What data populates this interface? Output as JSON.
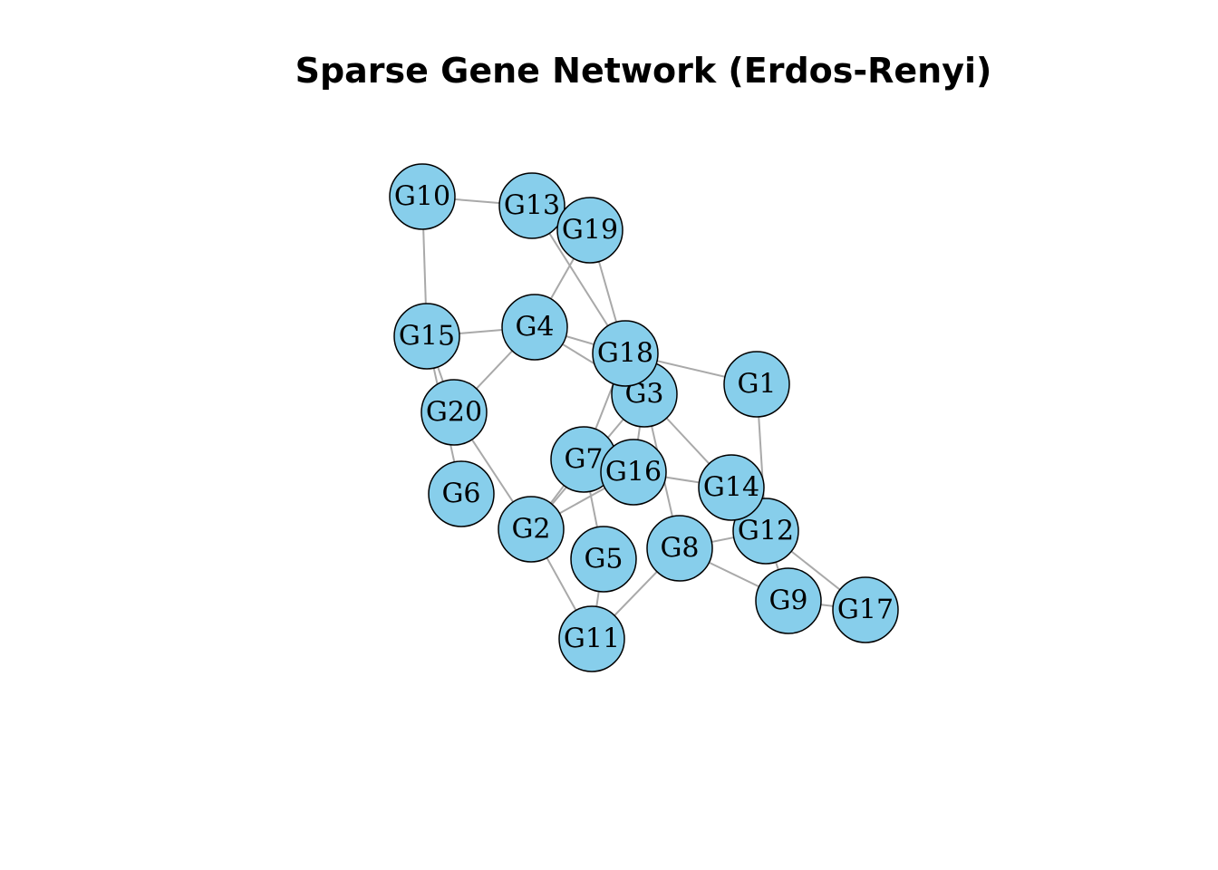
{
  "title": "Sparse Gene Network (Erdos-Renyi)",
  "colors": {
    "node_fill": "#87ceeb",
    "node_border": "#000000",
    "edge": "#a9a9a9",
    "background": "#ffffff"
  },
  "graph": {
    "type": "undirected network",
    "nodes": [
      "G1",
      "G2",
      "G3",
      "G4",
      "G5",
      "G6",
      "G7",
      "G8",
      "G9",
      "G10",
      "G11",
      "G12",
      "G13",
      "G14",
      "G15",
      "G16",
      "G17",
      "G18",
      "G19",
      "G20"
    ],
    "edges": [
      [
        "G10",
        "G13"
      ],
      [
        "G10",
        "G15"
      ],
      [
        "G13",
        "G18"
      ],
      [
        "G19",
        "G4"
      ],
      [
        "G19",
        "G18"
      ],
      [
        "G15",
        "G4"
      ],
      [
        "G15",
        "G20"
      ],
      [
        "G15",
        "G6"
      ],
      [
        "G4",
        "G20"
      ],
      [
        "G4",
        "G18"
      ],
      [
        "G4",
        "G3"
      ],
      [
        "G18",
        "G1"
      ],
      [
        "G18",
        "G7"
      ],
      [
        "G1",
        "G12"
      ],
      [
        "G20",
        "G2"
      ],
      [
        "G3",
        "G14"
      ],
      [
        "G3",
        "G8"
      ],
      [
        "G3",
        "G16"
      ],
      [
        "G3",
        "G2"
      ],
      [
        "G16",
        "G14"
      ],
      [
        "G16",
        "G2"
      ],
      [
        "G7",
        "G2"
      ],
      [
        "G7",
        "G5"
      ],
      [
        "G8",
        "G12"
      ],
      [
        "G8",
        "G9"
      ],
      [
        "G8",
        "G11"
      ],
      [
        "G12",
        "G17"
      ],
      [
        "G12",
        "G9"
      ],
      [
        "G9",
        "G17"
      ],
      [
        "G2",
        "G11"
      ],
      [
        "G5",
        "G11"
      ],
      [
        "G14",
        "G12"
      ]
    ]
  }
}
